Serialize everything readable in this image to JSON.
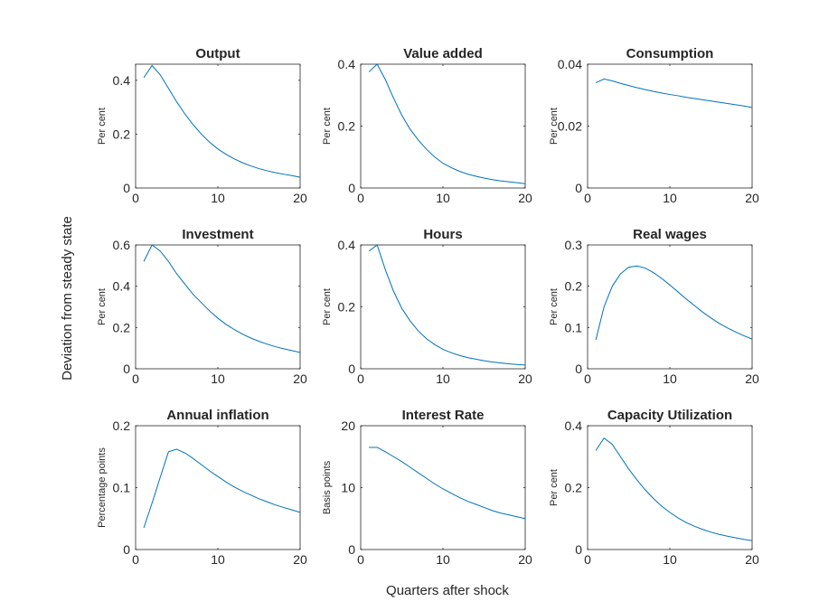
{
  "figure": {
    "ylabel": "Deviation from steady state",
    "xlabel": "Quarters after shock",
    "line_color": "#0072BD",
    "axis_color": "#262626"
  },
  "chart_data": [
    {
      "type": "line",
      "title": "Output",
      "ylabel": "Per cent",
      "xlim": [
        0,
        20
      ],
      "ylim": [
        0,
        0.46
      ],
      "xticks": [
        0,
        10,
        20
      ],
      "yticks": [
        0,
        0.2,
        0.4
      ],
      "ytick_labels": [
        "0",
        "0.2",
        "0.4"
      ],
      "x": [
        1,
        2,
        3,
        4,
        5,
        6,
        7,
        8,
        9,
        10,
        11,
        12,
        13,
        14,
        15,
        16,
        17,
        18,
        19,
        20
      ],
      "values": [
        0.41,
        0.455,
        0.42,
        0.37,
        0.32,
        0.275,
        0.235,
        0.2,
        0.17,
        0.145,
        0.125,
        0.108,
        0.094,
        0.082,
        0.072,
        0.064,
        0.057,
        0.051,
        0.046,
        0.04
      ]
    },
    {
      "type": "line",
      "title": "Value added",
      "ylabel": "Per cent",
      "xlim": [
        0,
        20
      ],
      "ylim": [
        0,
        0.4
      ],
      "xticks": [
        0,
        10,
        20
      ],
      "yticks": [
        0,
        0.2,
        0.4
      ],
      "ytick_labels": [
        "0",
        "0.2",
        "0.4"
      ],
      "x": [
        1,
        2,
        3,
        4,
        5,
        6,
        7,
        8,
        9,
        10,
        11,
        12,
        13,
        14,
        15,
        16,
        17,
        18,
        19,
        20
      ],
      "values": [
        0.375,
        0.4,
        0.35,
        0.29,
        0.235,
        0.19,
        0.155,
        0.125,
        0.1,
        0.08,
        0.066,
        0.054,
        0.045,
        0.038,
        0.032,
        0.027,
        0.023,
        0.02,
        0.017,
        0.014
      ]
    },
    {
      "type": "line",
      "title": "Consumption",
      "ylabel": "Per cent",
      "xlim": [
        0,
        20
      ],
      "ylim": [
        0,
        0.04
      ],
      "xticks": [
        0,
        10,
        20
      ],
      "yticks": [
        0,
        0.02,
        0.04
      ],
      "ytick_labels": [
        "0",
        "0.02",
        "0.04"
      ],
      "x": [
        1,
        2,
        3,
        4,
        5,
        6,
        7,
        8,
        9,
        10,
        11,
        12,
        13,
        14,
        15,
        16,
        17,
        18,
        19,
        20
      ],
      "values": [
        0.034,
        0.0352,
        0.0346,
        0.0338,
        0.0331,
        0.0324,
        0.0318,
        0.0312,
        0.0307,
        0.0302,
        0.0298,
        0.0293,
        0.0289,
        0.0285,
        0.0281,
        0.0277,
        0.0273,
        0.0269,
        0.0265,
        0.026
      ]
    },
    {
      "type": "line",
      "title": "Investment",
      "ylabel": "Per cent",
      "xlim": [
        0,
        20
      ],
      "ylim": [
        0,
        0.6
      ],
      "xticks": [
        0,
        10,
        20
      ],
      "yticks": [
        0,
        0.2,
        0.4,
        0.6
      ],
      "ytick_labels": [
        "0",
        "0.2",
        "0.4",
        "0.6"
      ],
      "x": [
        1,
        2,
        3,
        4,
        5,
        6,
        7,
        8,
        9,
        10,
        11,
        12,
        13,
        14,
        15,
        16,
        17,
        18,
        19,
        20
      ],
      "values": [
        0.52,
        0.6,
        0.57,
        0.52,
        0.46,
        0.41,
        0.36,
        0.32,
        0.28,
        0.245,
        0.215,
        0.19,
        0.168,
        0.149,
        0.133,
        0.119,
        0.107,
        0.097,
        0.088,
        0.079
      ]
    },
    {
      "type": "line",
      "title": "Hours",
      "ylabel": "Per cent",
      "xlim": [
        0,
        20
      ],
      "ylim": [
        0,
        0.4
      ],
      "xticks": [
        0,
        10,
        20
      ],
      "yticks": [
        0,
        0.2,
        0.4
      ],
      "ytick_labels": [
        "0",
        "0.2",
        "0.4"
      ],
      "x": [
        1,
        2,
        3,
        4,
        5,
        6,
        7,
        8,
        9,
        10,
        11,
        12,
        13,
        14,
        15,
        16,
        17,
        18,
        19,
        20
      ],
      "values": [
        0.38,
        0.4,
        0.32,
        0.25,
        0.195,
        0.155,
        0.122,
        0.097,
        0.078,
        0.063,
        0.052,
        0.043,
        0.036,
        0.031,
        0.026,
        0.022,
        0.019,
        0.016,
        0.014,
        0.012
      ]
    },
    {
      "type": "line",
      "title": "Real wages",
      "ylabel": "Per cent",
      "xlim": [
        0,
        20
      ],
      "ylim": [
        0,
        0.3
      ],
      "xticks": [
        0,
        10,
        20
      ],
      "yticks": [
        0,
        0.1,
        0.2,
        0.3
      ],
      "ytick_labels": [
        "0",
        "0.1",
        "0.2",
        "0.3"
      ],
      "x": [
        1,
        2,
        3,
        4,
        5,
        6,
        7,
        8,
        9,
        10,
        11,
        12,
        13,
        14,
        15,
        16,
        17,
        18,
        19,
        20
      ],
      "values": [
        0.07,
        0.15,
        0.2,
        0.23,
        0.246,
        0.249,
        0.244,
        0.233,
        0.219,
        0.203,
        0.186,
        0.169,
        0.153,
        0.137,
        0.123,
        0.11,
        0.099,
        0.089,
        0.08,
        0.072
      ]
    },
    {
      "type": "line",
      "title": "Annual inflation",
      "ylabel": "Percentage points",
      "xlim": [
        0,
        20
      ],
      "ylim": [
        0,
        0.2
      ],
      "xticks": [
        0,
        10,
        20
      ],
      "yticks": [
        0,
        0.1,
        0.2
      ],
      "ytick_labels": [
        "0",
        "0.1",
        "0.2"
      ],
      "x": [
        1,
        2,
        3,
        4,
        5,
        6,
        7,
        8,
        9,
        10,
        11,
        12,
        13,
        14,
        15,
        16,
        17,
        18,
        19,
        20
      ],
      "values": [
        0.035,
        0.075,
        0.117,
        0.158,
        0.162,
        0.156,
        0.147,
        0.137,
        0.127,
        0.118,
        0.109,
        0.101,
        0.094,
        0.088,
        0.082,
        0.077,
        0.072,
        0.068,
        0.064,
        0.06
      ]
    },
    {
      "type": "line",
      "title": "Interest Rate",
      "ylabel": "Basis points",
      "xlim": [
        0,
        20
      ],
      "ylim": [
        0,
        20
      ],
      "xticks": [
        0,
        10,
        20
      ],
      "yticks": [
        0,
        10,
        20
      ],
      "ytick_labels": [
        "0",
        "10",
        "20"
      ],
      "x": [
        1,
        2,
        3,
        4,
        5,
        6,
        7,
        8,
        9,
        10,
        11,
        12,
        13,
        14,
        15,
        16,
        17,
        18,
        19,
        20
      ],
      "values": [
        16.5,
        16.5,
        15.8,
        15,
        14.2,
        13.3,
        12.4,
        11.5,
        10.6,
        9.8,
        9.1,
        8.4,
        7.8,
        7.3,
        6.8,
        6.3,
        5.9,
        5.6,
        5.3,
        5
      ]
    },
    {
      "type": "line",
      "title": "Capacity Utilization",
      "ylabel": "Per cent",
      "xlim": [
        0,
        20
      ],
      "ylim": [
        0,
        0.4
      ],
      "xticks": [
        0,
        10,
        20
      ],
      "yticks": [
        0,
        0.2,
        0.4
      ],
      "ytick_labels": [
        "0",
        "0.2",
        "0.4"
      ],
      "x": [
        1,
        2,
        3,
        4,
        5,
        6,
        7,
        8,
        9,
        10,
        11,
        12,
        13,
        14,
        15,
        16,
        17,
        18,
        19,
        20
      ],
      "values": [
        0.32,
        0.36,
        0.34,
        0.3,
        0.26,
        0.225,
        0.193,
        0.165,
        0.14,
        0.12,
        0.102,
        0.087,
        0.075,
        0.065,
        0.056,
        0.049,
        0.043,
        0.038,
        0.033,
        0.029
      ]
    }
  ]
}
